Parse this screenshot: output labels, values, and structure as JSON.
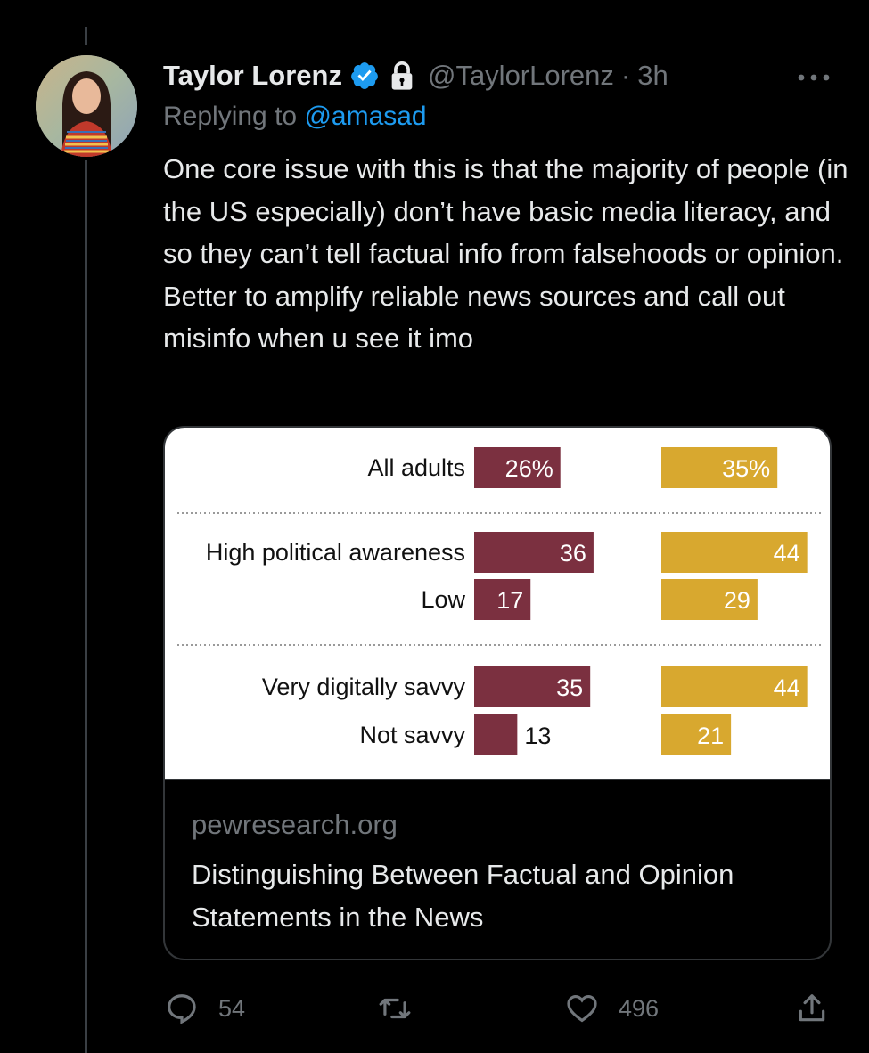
{
  "tweet": {
    "author_name": "Taylor Lorenz",
    "handle": "@TaylorLorenz",
    "separator": "·",
    "time": "3h",
    "replying_prefix": "Replying to ",
    "replying_to": "@amasad",
    "text": "One core issue with this is that the majority of people (in the US especially) don’t have basic media literacy, and so they can’t tell factual info from falsehoods or opinion. Better to amplify reliable news sources and call out misinfo when u see it imo",
    "verified_icon": "verified-badge-icon",
    "protected_icon": "lock-icon",
    "more_icon": "more-icon"
  },
  "card": {
    "domain": "pewresearch.org",
    "title": "Distinguishing Between Factual and Opinion Statements in the News"
  },
  "chart_data": {
    "type": "bar",
    "categories": [
      "All adults",
      "High political awareness",
      "Low",
      "Very digitally savvy",
      "Not savvy"
    ],
    "series": [
      {
        "values": [
          26,
          36,
          17,
          35,
          13
        ],
        "labels": [
          "26%",
          "36",
          "17",
          "35",
          "13"
        ],
        "color": "#7b3040"
      },
      {
        "values": [
          35,
          44,
          29,
          44,
          21
        ],
        "labels": [
          "35%",
          "44",
          "29",
          "44",
          "21"
        ],
        "color": "#d8a82f"
      }
    ],
    "groups_separated_by_dotted_lines": true
  },
  "actions": {
    "replies": "54",
    "likes": "496",
    "reply_icon": "reply-icon",
    "retweet_icon": "retweet-icon",
    "like_icon": "heart-icon",
    "share_icon": "share-icon"
  }
}
